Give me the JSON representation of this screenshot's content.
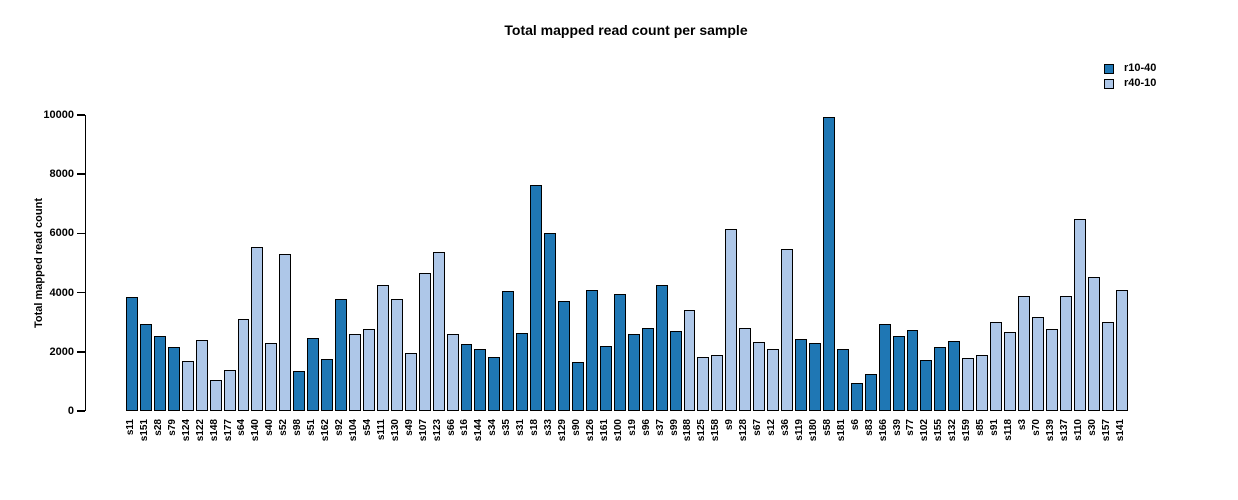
{
  "chart": {
    "title": "Total mapped read count per sample",
    "ylabel": "Total mapped read count",
    "legend": [
      {
        "label": "r10-40",
        "color": "#1f77b4"
      },
      {
        "label": "r40-10",
        "color": "#aec7e8"
      }
    ]
  },
  "chart_data": {
    "type": "bar",
    "title": "Total mapped read count per sample",
    "xlabel": "",
    "ylabel": "Total mapped read count",
    "ylim": [
      0,
      10000
    ],
    "yticks": [
      0,
      2000,
      4000,
      6000,
      8000,
      10000
    ],
    "grid": false,
    "legend_position": "top-right",
    "bar_border_color": "#000000",
    "series": [
      {
        "name": "r10-40",
        "color": "#1f77b4"
      },
      {
        "name": "r40-10",
        "color": "#aec7e8"
      }
    ],
    "categories": [
      "s11",
      "s151",
      "s28",
      "s79",
      "s124",
      "s122",
      "s148",
      "s177",
      "s64",
      "s140",
      "s40",
      "s52",
      "s98",
      "s51",
      "s162",
      "s92",
      "s104",
      "s54",
      "s111",
      "s130",
      "s49",
      "s107",
      "s123",
      "s66",
      "s16",
      "s144",
      "s34",
      "s35",
      "s31",
      "s18",
      "s33",
      "s129",
      "s90",
      "s126",
      "s161",
      "s100",
      "s19",
      "s96",
      "s37",
      "s99",
      "s188",
      "s125",
      "s158",
      "s9",
      "s128",
      "s67",
      "s12",
      "s36",
      "s119",
      "s180",
      "s58",
      "s181",
      "s6",
      "s83",
      "s166",
      "s39",
      "s77",
      "s102",
      "s155",
      "s132",
      "s159",
      "s85",
      "s91",
      "s118",
      "s3",
      "s70",
      "s139",
      "s137",
      "s110",
      "s30",
      "s157",
      "s141"
    ],
    "values": [
      3850,
      2950,
      2550,
      2150,
      1700,
      2400,
      1050,
      1400,
      3100,
      5540,
      2300,
      5300,
      1350,
      2450,
      1750,
      3800,
      2600,
      2780,
      4250,
      3780,
      1950,
      4650,
      5370,
      2600,
      2250,
      2080,
      1830,
      4050,
      2630,
      7650,
      6000,
      3700,
      1670,
      4080,
      2200,
      3950,
      2600,
      2820,
      4250,
      2720,
      3400,
      1820,
      1880,
      6150,
      2820,
      2330,
      2080,
      5470,
      2440,
      2300,
      9930,
      2100,
      960,
      1240,
      2930,
      2550,
      2740,
      1720,
      2150,
      2370,
      1800,
      1900,
      3000,
      2670,
      3890,
      3190,
      2780,
      3880,
      6480,
      4520,
      3020,
      4100
    ],
    "groups": [
      "r10-40",
      "r10-40",
      "r10-40",
      "r10-40",
      "r40-10",
      "r40-10",
      "r40-10",
      "r40-10",
      "r40-10",
      "r40-10",
      "r40-10",
      "r40-10",
      "r10-40",
      "r10-40",
      "r10-40",
      "r10-40",
      "r40-10",
      "r40-10",
      "r40-10",
      "r40-10",
      "r40-10",
      "r40-10",
      "r40-10",
      "r40-10",
      "r10-40",
      "r10-40",
      "r10-40",
      "r10-40",
      "r10-40",
      "r10-40",
      "r10-40",
      "r10-40",
      "r10-40",
      "r10-40",
      "r10-40",
      "r10-40",
      "r10-40",
      "r10-40",
      "r10-40",
      "r10-40",
      "r40-10",
      "r40-10",
      "r40-10",
      "r40-10",
      "r40-10",
      "r40-10",
      "r40-10",
      "r40-10",
      "r10-40",
      "r10-40",
      "r10-40",
      "r10-40",
      "r10-40",
      "r10-40",
      "r10-40",
      "r10-40",
      "r10-40",
      "r10-40",
      "r10-40",
      "r10-40",
      "r40-10",
      "r40-10",
      "r40-10",
      "r40-10",
      "r40-10",
      "r40-10",
      "r40-10",
      "r40-10",
      "r40-10",
      "r40-10",
      "r40-10",
      "r40-10"
    ]
  }
}
